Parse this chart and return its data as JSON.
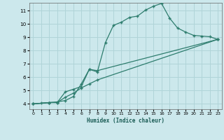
{
  "xlabel": "Humidex (Indice chaleur)",
  "background_color": "#cce8ec",
  "grid_color": "#b0d4d8",
  "line_color": "#2e7d6e",
  "xlim": [
    -0.5,
    23.5
  ],
  "ylim": [
    3.6,
    11.6
  ],
  "xticks": [
    0,
    1,
    2,
    3,
    4,
    5,
    6,
    7,
    8,
    9,
    10,
    11,
    12,
    13,
    14,
    15,
    16,
    17,
    18,
    19,
    20,
    21,
    22,
    23
  ],
  "yticks": [
    4,
    5,
    6,
    7,
    8,
    9,
    10,
    11
  ],
  "line1_x": [
    0,
    1,
    2,
    3,
    4,
    5,
    6,
    7,
    8,
    9,
    10,
    11,
    12,
    13,
    14,
    15,
    16,
    17,
    18,
    19,
    20,
    21,
    22,
    23
  ],
  "line1_y": [
    4.0,
    4.05,
    4.1,
    4.15,
    4.25,
    4.55,
    5.5,
    6.6,
    6.4,
    8.6,
    9.9,
    10.15,
    10.5,
    10.6,
    11.05,
    11.35,
    11.55,
    10.45,
    9.7,
    9.4,
    9.15,
    9.1,
    9.05,
    8.85
  ],
  "line2_x": [
    0,
    2,
    3,
    4,
    5,
    6,
    7,
    8,
    23
  ],
  "line2_y": [
    4.0,
    4.1,
    4.1,
    4.9,
    5.1,
    5.3,
    6.6,
    6.5,
    8.85
  ],
  "line3_x": [
    0,
    2,
    3,
    4,
    5,
    6,
    7,
    8,
    23
  ],
  "line3_y": [
    4.0,
    4.1,
    4.1,
    4.5,
    4.8,
    5.2,
    5.5,
    5.8,
    8.85
  ]
}
